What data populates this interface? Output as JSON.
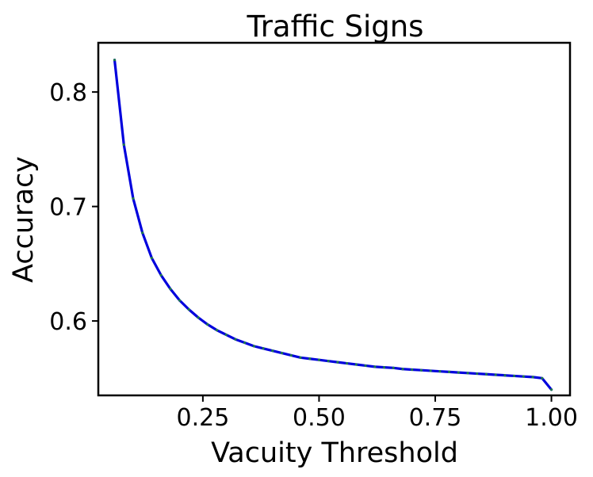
{
  "chart_data": {
    "type": "line",
    "title": "Traffic Signs",
    "xlabel": "Vacuity Threshold",
    "ylabel": "Accuracy",
    "xlim": [
      0.025,
      1.04
    ],
    "ylim": [
      0.535,
      0.843
    ],
    "xticks": [
      {
        "value": 0.25,
        "label": "0.25"
      },
      {
        "value": 0.5,
        "label": "0.50"
      },
      {
        "value": 0.75,
        "label": "0.75"
      },
      {
        "value": 1.0,
        "label": "1.00"
      }
    ],
    "yticks": [
      {
        "value": 0.6,
        "label": "0.6"
      },
      {
        "value": 0.7,
        "label": "0.7"
      },
      {
        "value": 0.8,
        "label": "0.8"
      }
    ],
    "grid": false,
    "line_color": "#0000dd",
    "marker_color": "#1f7a4d",
    "series": [
      {
        "x": [
          0.06,
          0.08,
          0.1,
          0.12,
          0.14,
          0.16,
          0.18,
          0.2,
          0.22,
          0.24,
          0.26,
          0.28,
          0.3,
          0.32,
          0.34,
          0.36,
          0.38,
          0.4,
          0.42,
          0.44,
          0.46,
          0.48,
          0.5,
          0.52,
          0.54,
          0.56,
          0.58,
          0.6,
          0.62,
          0.64,
          0.66,
          0.68,
          0.7,
          0.72,
          0.74,
          0.76,
          0.78,
          0.8,
          0.82,
          0.84,
          0.86,
          0.88,
          0.9,
          0.92,
          0.94,
          0.96,
          0.98,
          1.0
        ],
        "y": [
          0.828,
          0.754,
          0.707,
          0.677,
          0.655,
          0.64,
          0.628,
          0.618,
          0.61,
          0.603,
          0.597,
          0.592,
          0.588,
          0.584,
          0.581,
          0.578,
          0.576,
          0.574,
          0.572,
          0.57,
          0.568,
          0.567,
          0.566,
          0.565,
          0.564,
          0.563,
          0.562,
          0.561,
          0.56,
          0.5595,
          0.559,
          0.558,
          0.5575,
          0.557,
          0.5565,
          0.556,
          0.5555,
          0.555,
          0.5545,
          0.554,
          0.5535,
          0.553,
          0.5525,
          0.552,
          0.5515,
          0.551,
          0.55,
          0.54
        ]
      }
    ]
  }
}
